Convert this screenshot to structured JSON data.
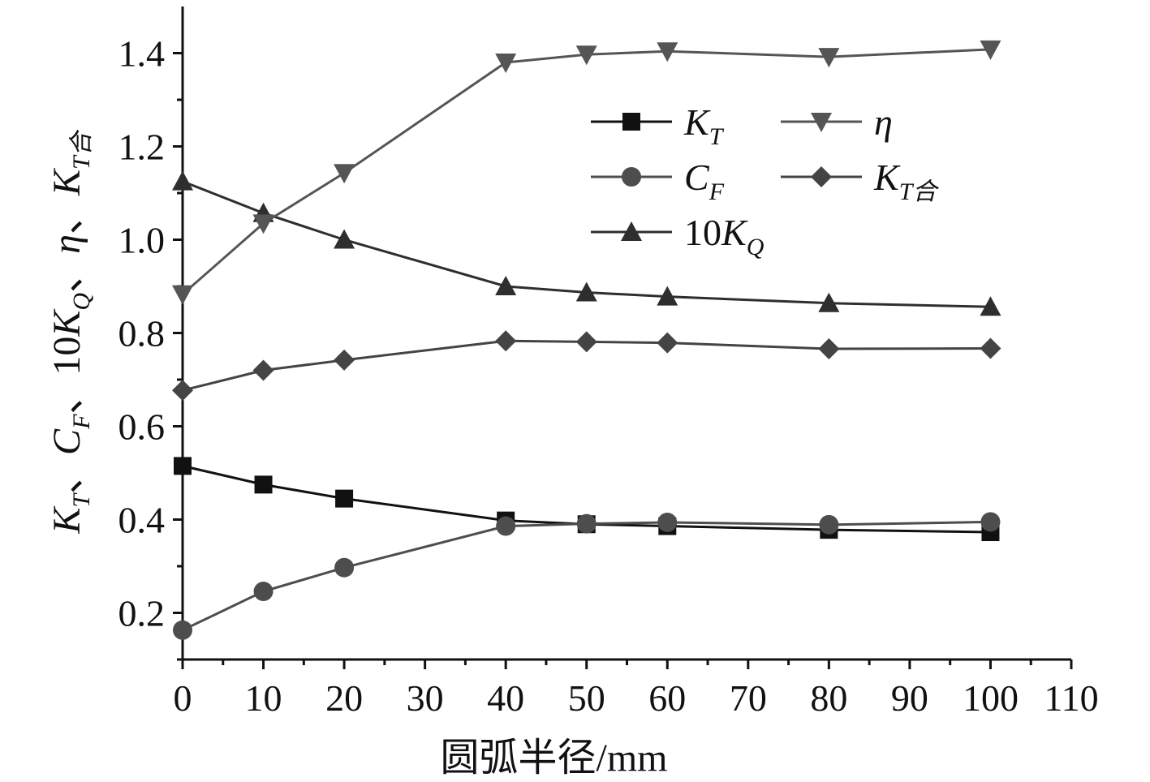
{
  "chart_data": {
    "type": "line",
    "xlabel": "圆弧半径/mm",
    "ylabel": {
      "parts": [
        {
          "text": "K",
          "sub": "T",
          "sep": "、"
        },
        {
          "text": "C",
          "sub": "F",
          "sep": "、"
        },
        {
          "text": "10K",
          "sub": "Q",
          "sep": "、"
        },
        {
          "text": "η",
          "sub": "",
          "sep": "、"
        },
        {
          "text": "K",
          "sub": "T合",
          "sep": ""
        }
      ]
    },
    "xlim": [
      0,
      110
    ],
    "ylim": [
      0.1,
      1.5
    ],
    "xticks": [
      "0",
      "10",
      "20",
      "30",
      "40",
      "50",
      "60",
      "70",
      "80",
      "90",
      "100",
      "110"
    ],
    "yticks": [
      "0.2",
      "0.4",
      "0.6",
      "0.8",
      "1.0",
      "1.2",
      "1.4"
    ],
    "x": [
      0,
      10,
      20,
      40,
      50,
      60,
      80,
      100
    ],
    "grid": false,
    "legend_position": "top-right",
    "series": [
      {
        "name": "KT",
        "label_main": "K",
        "label_sub": "T",
        "marker": "square",
        "color": "#111111",
        "values": [
          0.515,
          0.475,
          0.445,
          0.398,
          0.39,
          0.386,
          0.378,
          0.373
        ]
      },
      {
        "name": "CF",
        "label_main": "C",
        "label_sub": "F",
        "marker": "circle",
        "color": "#4d4d4d",
        "values": [
          0.163,
          0.246,
          0.297,
          0.386,
          0.391,
          0.394,
          0.389,
          0.395
        ]
      },
      {
        "name": "10KQ",
        "label_main": "10K",
        "label_sub": "Q",
        "marker": "triangle-up",
        "color": "#2e2e2e",
        "values": [
          1.125,
          1.057,
          1.0,
          0.9,
          0.887,
          0.878,
          0.864,
          0.856
        ]
      },
      {
        "name": "η",
        "label_main": "η",
        "label_sub": "",
        "marker": "triangle-down",
        "color": "#555555",
        "values": [
          0.883,
          1.035,
          1.143,
          1.38,
          1.397,
          1.404,
          1.392,
          1.408
        ]
      },
      {
        "name": "KT合",
        "label_main": "K",
        "label_sub": "T合",
        "marker": "diamond",
        "color": "#444444",
        "values": [
          0.677,
          0.72,
          0.742,
          0.783,
          0.781,
          0.779,
          0.766,
          0.767
        ]
      }
    ],
    "legend_order": [
      0,
      3,
      1,
      4,
      2
    ]
  }
}
